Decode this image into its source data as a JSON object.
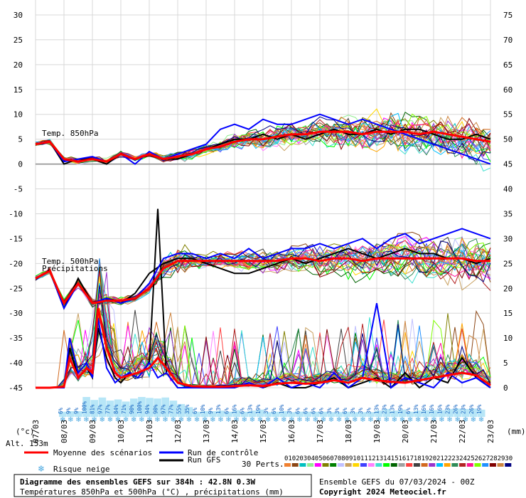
{
  "chart_data": {
    "type": "line",
    "left_axis": {
      "label": "(°c)",
      "ticks": [
        "30",
        "25",
        "20",
        "15",
        "10",
        "5",
        "0",
        "-5",
        "-10",
        "-15",
        "-20",
        "-25",
        "-30",
        "-35",
        "-40",
        "-45"
      ],
      "ylim": [
        -45,
        30
      ]
    },
    "right_axis": {
      "label": "(mm)",
      "ticks": [
        "75",
        "70",
        "65",
        "60",
        "55",
        "50",
        "45",
        "40",
        "35",
        "30",
        "25",
        "20",
        "15",
        "10",
        "5",
        "0"
      ],
      "ylim": [
        0,
        75
      ]
    },
    "x_dates": [
      "07/03",
      "08/03",
      "09/03",
      "10/03",
      "11/03",
      "12/03",
      "13/03",
      "14/03",
      "15/03",
      "16/03",
      "17/03",
      "18/03",
      "19/03",
      "20/03",
      "21/03",
      "22/03",
      "23/03"
    ],
    "x_days": [
      0,
      1,
      2,
      3,
      4,
      5,
      6,
      7,
      8,
      9,
      10,
      11,
      12,
      13,
      14,
      15,
      16
    ],
    "grid": true,
    "series": [
      {
        "name": "Moyenne des scénarios",
        "color": "#ff0000",
        "group": "T850",
        "x": [
          0,
          0.5,
          1,
          1.5,
          2,
          2.5,
          3,
          3.5,
          4,
          4.5,
          5,
          5.5,
          6,
          6.5,
          7,
          7.5,
          8,
          8.5,
          9,
          9.5,
          10,
          10.5,
          11,
          11.5,
          12,
          12.5,
          13,
          13.5,
          14,
          14.5,
          15,
          15.5,
          16
        ],
        "y": [
          4,
          4.5,
          1,
          0.5,
          1,
          0.5,
          2,
          1,
          2,
          1,
          1.5,
          2,
          3,
          3.5,
          4.5,
          5,
          5,
          5.5,
          6,
          6,
          6.5,
          6.5,
          6.5,
          6,
          6.5,
          6.5,
          6.5,
          6,
          6.5,
          6,
          5.5,
          5,
          4.5
        ]
      },
      {
        "name": "Run de contrôle",
        "color": "#0000ff",
        "group": "T850",
        "x": [
          0,
          0.5,
          1,
          1.5,
          2,
          2.5,
          3,
          3.5,
          4,
          4.5,
          5,
          5.5,
          6,
          6.5,
          7,
          7.5,
          8,
          8.5,
          9,
          9.5,
          10,
          10.5,
          11,
          11.5,
          12,
          12.5,
          13,
          13.5,
          14,
          14.5,
          15,
          15.5,
          16
        ],
        "y": [
          4,
          4.5,
          0.5,
          1,
          1.5,
          0.5,
          2,
          0,
          2.5,
          1,
          2,
          3,
          4,
          7,
          8,
          7,
          9,
          8,
          8,
          9,
          10,
          9,
          8,
          9,
          8,
          7,
          6,
          5,
          4,
          3,
          2,
          1,
          0
        ]
      },
      {
        "name": "Run GFS",
        "color": "#000000",
        "group": "T850",
        "x": [
          0,
          0.5,
          1,
          1.5,
          2,
          2.5,
          3,
          3.5,
          4,
          4.5,
          5,
          5.5,
          6,
          6.5,
          7,
          7.5,
          8,
          8.5,
          9,
          9.5,
          10,
          10.5,
          11,
          11.5,
          12,
          12.5,
          13,
          13.5,
          14,
          14.5,
          15,
          15.5,
          16
        ],
        "y": [
          4,
          4.5,
          0,
          1,
          1,
          0,
          2,
          1,
          2,
          1,
          1,
          2,
          3,
          4,
          5,
          5,
          6,
          5,
          6,
          5,
          6,
          7,
          6,
          6,
          7,
          6,
          7,
          7,
          6,
          5,
          5,
          6,
          5
        ]
      },
      {
        "name": "Moyenne des scénarios",
        "color": "#ff0000",
        "group": "T500",
        "x": [
          0,
          0.5,
          1,
          1.5,
          2,
          2.5,
          3,
          3.5,
          4,
          4.5,
          5,
          5.5,
          6,
          6.5,
          7,
          7.5,
          8,
          8.5,
          9,
          9.5,
          10,
          10.5,
          11,
          11.5,
          12,
          12.5,
          13,
          13.5,
          14,
          14.5,
          15,
          15.5,
          16
        ],
        "y": [
          -23,
          -21.5,
          -28,
          -24,
          -28,
          -27.5,
          -27.5,
          -27,
          -25,
          -21,
          -19.5,
          -19.5,
          -19.5,
          -19.5,
          -19.5,
          -19.5,
          -19.5,
          -19.5,
          -19,
          -19,
          -19.5,
          -19,
          -19,
          -19.5,
          -19,
          -19,
          -19,
          -19,
          -19,
          -19,
          -19,
          -19.5,
          -19.5
        ]
      },
      {
        "name": "Run de contrôle",
        "color": "#0000ff",
        "group": "T500",
        "x": [
          0,
          0.5,
          1,
          1.5,
          2,
          2.5,
          3,
          3.5,
          4,
          4.5,
          5,
          5.5,
          6,
          6.5,
          7,
          7.5,
          8,
          8.5,
          9,
          9.5,
          10,
          10.5,
          11,
          11.5,
          12,
          12.5,
          13,
          13.5,
          14,
          14.5,
          15,
          15.5,
          16
        ],
        "y": [
          -23,
          -21.5,
          -29,
          -24,
          -28,
          -27,
          -28,
          -27,
          -24,
          -19,
          -18,
          -18,
          -19,
          -18,
          -19,
          -17,
          -19,
          -18,
          -17,
          -17,
          -16,
          -17,
          -16,
          -15,
          -17,
          -15,
          -14,
          -16,
          -15,
          -14,
          -13,
          -14,
          -15
        ]
      },
      {
        "name": "Run GFS",
        "color": "#000000",
        "group": "T500",
        "x": [
          0,
          0.5,
          1,
          1.5,
          2,
          2.5,
          3,
          3.5,
          4,
          4.5,
          5,
          5.5,
          6,
          6.5,
          7,
          7.5,
          8,
          8.5,
          9,
          9.5,
          10,
          10.5,
          11,
          11.5,
          12,
          12.5,
          13,
          13.5,
          14,
          14.5,
          15,
          15.5,
          16
        ],
        "y": [
          -23,
          -21.5,
          -29,
          -23,
          -28,
          -27,
          -28,
          -26,
          -22,
          -20,
          -19,
          -19,
          -20,
          -21,
          -22,
          -22,
          -21,
          -20,
          -19,
          -20,
          -19,
          -18,
          -17,
          -18,
          -19,
          -18,
          -17,
          -18,
          -18,
          -19,
          -19,
          -20,
          -19
        ]
      },
      {
        "name": "Moyenne des scénarios",
        "color": "#ff0000",
        "group": "PRECIP",
        "x": [
          0,
          0.5,
          1,
          1.2,
          1.5,
          1.8,
          2,
          2.2,
          2.5,
          2.8,
          3,
          3.3,
          3.6,
          4,
          4.3,
          4.6,
          5,
          5.5,
          6,
          6.5,
          7,
          7.5,
          8,
          8.5,
          9,
          9.5,
          10,
          10.5,
          11,
          11.5,
          12,
          12.5,
          13,
          13.5,
          14,
          14.5,
          15,
          15.5,
          16
        ],
        "y": [
          0,
          0,
          0.2,
          6,
          2,
          4,
          3,
          16,
          8,
          3,
          2,
          2.5,
          3,
          4,
          6,
          4,
          1,
          0.3,
          0.2,
          0.2,
          0.3,
          0.5,
          0.3,
          0.8,
          1,
          0.8,
          1,
          1.5,
          1,
          2,
          1.5,
          1.2,
          1,
          1.5,
          2,
          2.5,
          3,
          2.5,
          0.5
        ]
      },
      {
        "name": "Run de contrôle",
        "color": "#0000ff",
        "group": "PRECIP",
        "x": [
          0,
          0.5,
          1,
          1.2,
          1.5,
          1.8,
          2,
          2.2,
          2.5,
          2.8,
          3,
          3.3,
          3.6,
          4,
          4.3,
          4.6,
          5,
          5.5,
          6,
          6.5,
          7,
          7.5,
          8,
          8.5,
          9,
          9.5,
          10,
          10.5,
          11,
          11.5,
          12,
          12.5,
          13,
          13.5,
          14,
          14.5,
          15,
          15.5,
          16
        ],
        "y": [
          0,
          0,
          0,
          10,
          3,
          5,
          2,
          14,
          4,
          1,
          2,
          3,
          2,
          5,
          2,
          3,
          0,
          0,
          0,
          0,
          0,
          1,
          0,
          2,
          0,
          1,
          0,
          3,
          0,
          2,
          17,
          0,
          2,
          1,
          0,
          3,
          1,
          2,
          0
        ]
      },
      {
        "name": "Run GFS",
        "color": "#000000",
        "group": "PRECIP",
        "x": [
          0,
          0.5,
          1,
          1.2,
          1.5,
          1.8,
          2,
          2.2,
          2.5,
          2.8,
          3,
          3.3,
          3.6,
          4,
          4.3,
          4.6,
          5,
          5.5,
          6,
          6.5,
          7,
          7.5,
          8,
          8.5,
          9,
          9.5,
          10,
          10.5,
          11,
          11.5,
          12,
          12.5,
          13,
          13.5,
          14,
          14.5,
          15,
          15.5,
          16
        ],
        "y": [
          0,
          0,
          0,
          8,
          2,
          4,
          2,
          12,
          6,
          2,
          1,
          3,
          2,
          5,
          36,
          3,
          0,
          0,
          0,
          0,
          0,
          1,
          0,
          1,
          0,
          0,
          1,
          2,
          0,
          1,
          2,
          0,
          3,
          0,
          2,
          1,
          6,
          2,
          0
        ]
      }
    ],
    "labels": {
      "t850": "Temp. 850hPa",
      "t500": "Temp. 500hPa",
      "precip": "Précipitations",
      "alt": "Alt. 153m"
    },
    "risk_label": "Risque neige",
    "risk_values": [
      "6%",
      "9%",
      "9%",
      "100%",
      "81%",
      "97%",
      "77%",
      "84%",
      "71%",
      "90%",
      "100%",
      "94%",
      "90%",
      "97%",
      "77%",
      "55%",
      "35%",
      "6%",
      "10%",
      "9%",
      "13%",
      "6%",
      "16%",
      "6%",
      "13%",
      "19%",
      "3%",
      "6%",
      "10%",
      "3%",
      "6%",
      "6%",
      "6%",
      "6%",
      "3%",
      "3%",
      "6%",
      "3%",
      "3%",
      "3%",
      "13%",
      "23%",
      "13%",
      "19%",
      "6%",
      "13%",
      "16%",
      "16%",
      "16%",
      "23%",
      "26%",
      "23%",
      "26%",
      "19%"
    ],
    "perts_label": "30 Perts.",
    "pert_ids": [
      "01",
      "02",
      "03",
      "04",
      "05",
      "06",
      "07",
      "08",
      "09",
      "10",
      "11",
      "12",
      "13",
      "14",
      "15",
      "16",
      "17",
      "18",
      "19",
      "20",
      "21",
      "22",
      "23",
      "24",
      "25",
      "26",
      "27",
      "28",
      "29",
      "30"
    ],
    "pert_colors": [
      "#f08030",
      "#8b4513",
      "#00c0c0",
      "#90ee90",
      "#ff00ff",
      "#808000",
      "#008000",
      "#c0c0ff",
      "#c8a060",
      "#ffd700",
      "#4040ff",
      "#ff80ff",
      "#40e0d0",
      "#00ff00",
      "#006400",
      "#a0a0a0",
      "#ff4040",
      "#404040",
      "#d2691e",
      "#9932cc",
      "#00bfff",
      "#ffa500",
      "#2e8b57",
      "#b22222",
      "#ff1493",
      "#7fff00",
      "#1e90ff",
      "#800000",
      "#cd853f",
      "#000080"
    ]
  },
  "legend": {
    "mean": "Moyenne des scénarios",
    "control": "Run de contrôle",
    "gfs": "Run GFS"
  },
  "footer": {
    "title": "Diagramme des ensembles GEFS sur 384h : 42.8N 0.3W",
    "subtitle": "Températures 850hPa et 500hPa (°C) , précipitations (mm)",
    "run": "Ensemble GEFS du 07/03/2024 - 00Z",
    "copyright": "Copyright 2024 Meteociel.fr"
  }
}
